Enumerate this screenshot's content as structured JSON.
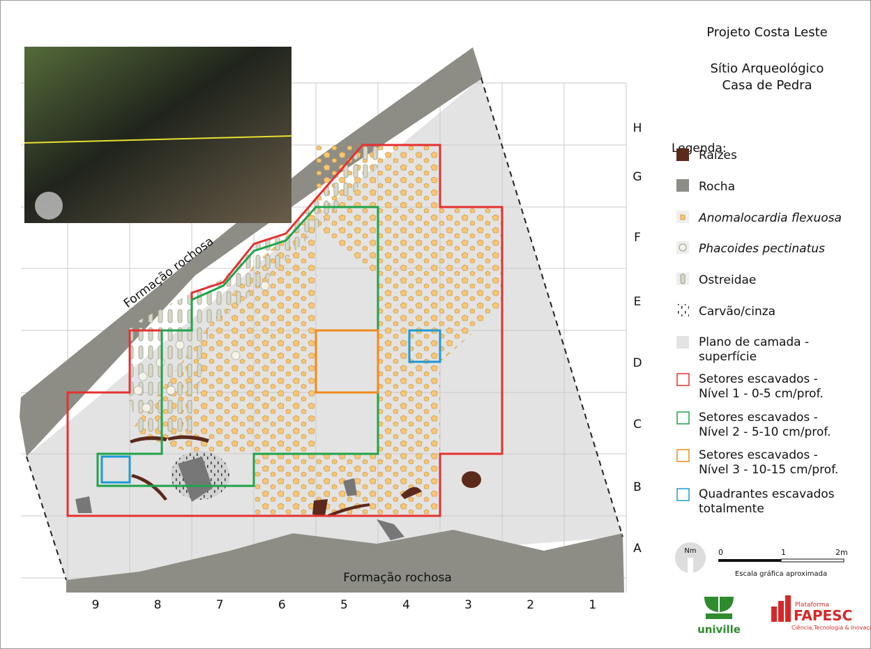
{
  "header": {
    "project": "Projeto Costa Leste",
    "site": [
      "Sítio Arqueológico",
      "Casa de Pedra"
    ]
  },
  "legend": {
    "title": "Legenda:",
    "items": [
      {
        "lines": [
          "Raízes"
        ]
      },
      {
        "lines": [
          "Rocha"
        ]
      },
      {
        "lines": [
          "Anomalocardia flexuosa"
        ]
      },
      {
        "lines": [
          "Phacoides pectinatus"
        ]
      },
      {
        "lines": [
          "Ostreidae"
        ]
      },
      {
        "lines": [
          "Carvão/cinza"
        ]
      },
      {
        "lines": [
          "Plano de camada -",
          "superfície"
        ]
      },
      {
        "lines": [
          "Setores escavados -",
          "Nível 1 - 0-5 cm/prof."
        ]
      },
      {
        "lines": [
          "Setores escavados -",
          "Nível 2 - 5-10 cm/prof."
        ]
      },
      {
        "lines": [
          "Setores escavados -",
          "Nível 3 - 10-15 cm/prof."
        ]
      },
      {
        "lines": [
          "Quadrantes escavados",
          "totalmente"
        ]
      }
    ]
  },
  "grid": {
    "rows": [
      "H",
      "G",
      "F",
      "E",
      "D",
      "C",
      "B",
      "A"
    ],
    "columns": [
      "9",
      "8",
      "7",
      "6",
      "5",
      "4",
      "3",
      "2",
      "1"
    ]
  },
  "map_labels": [
    "Formação rochosa",
    "Formação rochosa"
  ],
  "scale": {
    "north": "Nm",
    "ticks": [
      "0",
      "1",
      "2m"
    ],
    "caption": "Escala gráfica aproximada"
  },
  "logos": {
    "univille": "univille",
    "fapesc": [
      "Plataforma",
      "FAPESC",
      "Ciência,Tecnologia & Inovação"
    ]
  }
}
